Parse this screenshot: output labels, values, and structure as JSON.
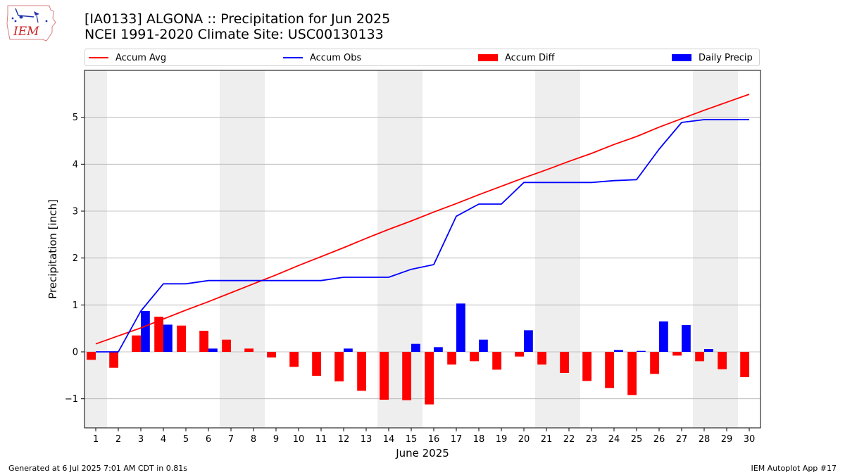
{
  "header": {
    "title_line1": "[IA0133] ALGONA :: Precipitation for Jun 2025",
    "title_line2": "NCEI 1991-2020 Climate Site: USC00130133",
    "logo_text": "IEM"
  },
  "footer": {
    "left": "Generated at 6 Jul 2025 7:01 AM CDT in 0.81s",
    "right": "IEM Autoplot App #17"
  },
  "colors": {
    "avg": "#ff0000",
    "obs": "#0000ff",
    "diff": "#ff0000",
    "daily": "#0000ff",
    "weekend_shade": "#eeeeee",
    "grid": "#b0b0b0"
  },
  "chart_data": {
    "type": "bar",
    "xlabel": "June 2025",
    "ylabel": "Precipitation [inch]",
    "ylim": [
      -1.62,
      6.0
    ],
    "yticks": [
      -1,
      0,
      1,
      2,
      3,
      4,
      5
    ],
    "ytick_labels": [
      "−1",
      "0",
      "1",
      "2",
      "3",
      "4",
      "5"
    ],
    "grid": "horizontal",
    "legend_position": "top",
    "categories": [
      1,
      2,
      3,
      4,
      5,
      6,
      7,
      8,
      9,
      10,
      11,
      12,
      13,
      14,
      15,
      16,
      17,
      18,
      19,
      20,
      21,
      22,
      23,
      24,
      25,
      26,
      27,
      28,
      29,
      30
    ],
    "shaded_days": [
      1,
      7,
      8,
      14,
      15,
      21,
      22,
      28,
      29
    ],
    "series": [
      {
        "name": "Accum Avg",
        "kind": "line",
        "values": [
          0.17,
          0.34,
          0.51,
          0.7,
          0.89,
          1.07,
          1.26,
          1.45,
          1.64,
          1.84,
          2.03,
          2.22,
          2.42,
          2.61,
          2.79,
          2.98,
          3.16,
          3.35,
          3.53,
          3.71,
          3.88,
          4.06,
          4.23,
          4.42,
          4.59,
          4.79,
          4.97,
          5.15,
          5.32,
          5.49
        ]
      },
      {
        "name": "Accum Obs",
        "kind": "line",
        "values": [
          0.0,
          0.0,
          0.87,
          1.45,
          1.45,
          1.52,
          1.52,
          1.52,
          1.52,
          1.52,
          1.52,
          1.59,
          1.59,
          1.59,
          1.76,
          1.86,
          2.89,
          3.15,
          3.15,
          3.61,
          3.61,
          3.61,
          3.61,
          3.65,
          3.67,
          4.32,
          4.89,
          4.95,
          4.95,
          4.95
        ]
      },
      {
        "name": "Accum Diff",
        "kind": "bar",
        "values": [
          -0.17,
          -0.34,
          0.35,
          0.75,
          0.56,
          0.45,
          0.26,
          0.07,
          -0.12,
          -0.32,
          -0.51,
          -0.63,
          -0.83,
          -1.02,
          -1.03,
          -1.12,
          -0.27,
          -0.2,
          -0.38,
          -0.1,
          -0.27,
          -0.45,
          -0.62,
          -0.77,
          -0.92,
          -0.47,
          -0.08,
          -0.2,
          -0.37,
          -0.54
        ]
      },
      {
        "name": "Daily Precip",
        "kind": "bar",
        "values": [
          0.0,
          0.0,
          0.87,
          0.58,
          0.0,
          0.07,
          0.0,
          0.0,
          0.0,
          0.0,
          0.0,
          0.07,
          0.0,
          0.0,
          0.17,
          0.1,
          1.03,
          0.26,
          0.0,
          0.46,
          0.0,
          0.0,
          0.0,
          0.04,
          0.02,
          0.65,
          0.57,
          0.06,
          0.0,
          0.0
        ]
      }
    ]
  }
}
